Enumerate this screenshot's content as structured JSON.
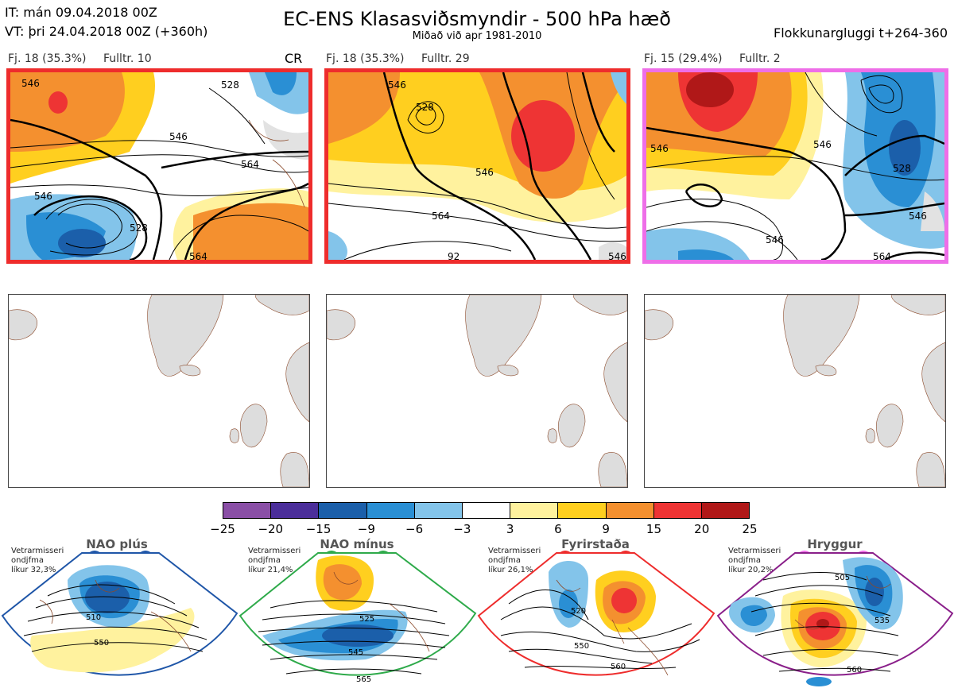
{
  "header": {
    "it_line": "IT: mán 09.04.2018 00Z",
    "vt_line": "VT: þri 24.04.2018 00Z  (+360h)",
    "title": "EC-ENS Klasasviðsmyndir - 500 hPa hæð",
    "subtitle": "Miðað við apr 1981-2010",
    "window": "Flokkunargluggi t+264-360"
  },
  "panels": [
    {
      "count": "Fj. 18 (35.3%)",
      "rep": "Fulltr. 10",
      "tag": "CR",
      "border_color": "#ee2c2c",
      "contour_labels": [
        "546",
        "528",
        "546",
        "564",
        "528",
        "546",
        "564"
      ]
    },
    {
      "count": "Fj. 18 (35.3%)",
      "rep": "Fulltr. 29",
      "tag": "",
      "border_color": "#ee2c2c",
      "contour_labels": [
        "528",
        "546",
        "546",
        "564",
        "546",
        "92"
      ]
    },
    {
      "count": "Fj. 15 (29.4%)",
      "rep": "Fulltr. 2",
      "tag": "",
      "border_color": "#ee6ee8",
      "contour_labels": [
        "546",
        "546",
        "528",
        "546",
        "564",
        "546"
      ]
    }
  ],
  "colorbar": {
    "colors": [
      "#8a4fa6",
      "#4b2e9a",
      "#1b5faa",
      "#2a8fd4",
      "#83c4ea",
      "#ffffff",
      "#fff29e",
      "#ffcf1f",
      "#f4902f",
      "#ee3434",
      "#b01818"
    ],
    "ticks": [
      "−25",
      "−20",
      "−15",
      "−9",
      "−6",
      "−3",
      "3",
      "6",
      "9",
      "15",
      "20",
      "25"
    ]
  },
  "regimes": [
    {
      "name": "NAO plús",
      "info": [
        "Vetrarmisseri",
        "ondjfma",
        "líkur 32,3%"
      ],
      "color": "#1f56a8",
      "labels": [
        "510",
        "550"
      ]
    },
    {
      "name": "NAO mínus",
      "info": [
        "Vetrarmisseri",
        "ondjfma",
        "líkur 21,4%"
      ],
      "color": "#2eaa4a",
      "labels": [
        "525",
        "545",
        "565"
      ]
    },
    {
      "name": "Fyrirstaða",
      "info": [
        "Vetrarmisseri",
        "ondjfma",
        "líkur 26,1%"
      ],
      "color": "#ee2c2c",
      "labels": [
        "520",
        "550",
        "560"
      ]
    },
    {
      "name": "Hryggur",
      "info": [
        "Vetrarmisseri",
        "ondjfma",
        "líkur 20,2%"
      ],
      "color": "#ee6ee8",
      "labels": [
        "505",
        "535",
        "560"
      ]
    }
  ]
}
